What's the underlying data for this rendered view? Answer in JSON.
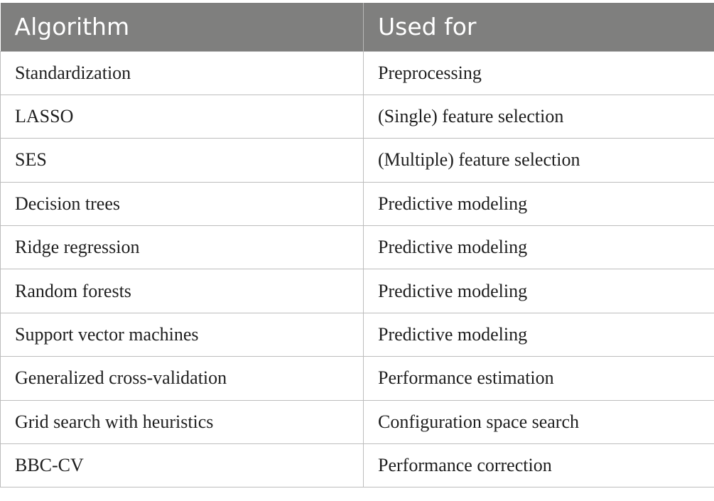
{
  "table": {
    "headers": [
      "Algorithm",
      "Used for"
    ],
    "rows": [
      [
        "Standardization",
        "Preprocessing"
      ],
      [
        "LASSO",
        "(Single) feature selection"
      ],
      [
        "SES",
        "(Multiple) feature selection"
      ],
      [
        "Decision trees",
        "Predictive modeling"
      ],
      [
        "Ridge regression",
        "Predictive modeling"
      ],
      [
        "Random forests",
        "Predictive modeling"
      ],
      [
        "Support vector machines",
        "Predictive modeling"
      ],
      [
        "Generalized cross-validation",
        "Performance estimation"
      ],
      [
        "Grid search with heuristics",
        "Configuration space search"
      ],
      [
        "BBC-CV",
        "Performance correction"
      ]
    ]
  },
  "colors": {
    "header_background": "#7f7f7e",
    "header_text": "#ffffff",
    "border": "#bdbdbd"
  }
}
